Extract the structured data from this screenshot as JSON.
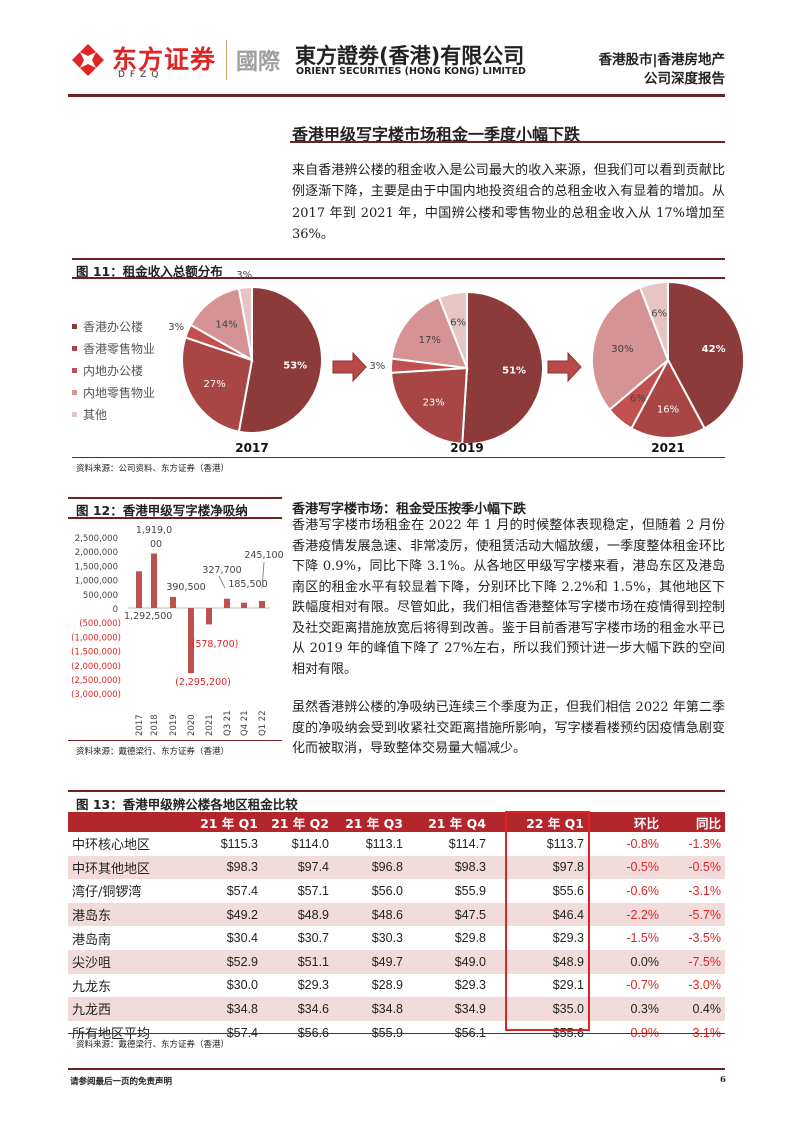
{
  "header": {
    "logo_cn": "东方证券",
    "logo_sub": "DFZQ",
    "intl": "國際",
    "company_cn": "東方證劵(香港)有限公司",
    "company_en": "ORIENT SECURITIES (HONG KONG) LIMITED",
    "category": "香港股市|香港房地产",
    "report_type": "公司深度报告"
  },
  "section": {
    "title": "香港甲级写字楼市场租金一季度小幅下跌",
    "para": "来自香港辨公楼的租金收入是公司最大的收入来源，但我们可以看到贡献比例逐渐下降，主要是由于中国内地投资组合的总租金收入有显着的增加。从 2017 年到 2021 年，中国辨公楼和零售物业的总租金收入从 17%增加至 36%。"
  },
  "colors": {
    "hk_office": "#8c3a3a",
    "hk_retail": "#a84545",
    "cn_office": "#c25050",
    "cn_retail": "#d59393",
    "other": "#e8c5c5",
    "accent": "#6e2222",
    "table_header": "#b3262c",
    "neg": "#e02424"
  },
  "chart_data": [
    {
      "type": "pie",
      "title": "图 11：租金收入总额分布",
      "legend": [
        "香港办公楼",
        "香港零售物业",
        "内地办公楼",
        "内地零售物业",
        "其他"
      ],
      "pies": [
        {
          "year": "2017",
          "values": [
            53,
            27,
            3,
            14,
            3
          ]
        },
        {
          "year": "2019",
          "values": [
            51,
            23,
            3,
            17,
            6
          ]
        },
        {
          "year": "2021",
          "values": [
            42,
            16,
            6,
            30,
            6
          ]
        }
      ],
      "source": "资料来源：公司资料、东方证券（香港）"
    },
    {
      "type": "bar",
      "title": "图 12：香港甲级写字楼净吸纳",
      "categories": [
        "2017",
        "2018",
        "2019",
        "2020",
        "2021",
        "Q3 21",
        "Q4 21",
        "Q1 22"
      ],
      "values": [
        1292500,
        1919000,
        390500,
        -2295200,
        -578700,
        327700,
        185500,
        245100
      ],
      "data_labels": [
        "1,292,500",
        "1,919,000",
        "390,500",
        "(2,295,200)",
        "(578,700)",
        "327,700",
        "185,500",
        "245,100"
      ],
      "yticks": [
        "2,500,000",
        "2,000,000",
        "1,500,000",
        "1,000,000",
        "500,000",
        "0",
        "(500,000)",
        "(1,000,000)",
        "(1,500,000)",
        "(2,000,000)",
        "(2,500,000)",
        "(3,000,000)"
      ],
      "ylim": [
        -3000000,
        2500000
      ],
      "source": "资料来源：戴德梁行、东方证券（香港）"
    }
  ],
  "right": {
    "heading": "香港写字楼市场：租金受压按季小幅下跌",
    "para1": "香港写字楼市场租金在 2022 年 1 月的时候整体表现稳定，但随着 2 月份香港疫情发展急速、非常凌厉，使租赁活动大幅放缓，一季度整体租金环比下降 0.9%，同比下降 3.1%。从各地区甲级写字楼来看，港岛东区及港岛南区的租金水平有较显着下降，分别环比下降 2.2%和 1.5%，其他地区下跌幅度相对有限。尽管如此，我们相信香港整体写字楼市场在疫情得到控制及社交距离措施放宽后将得到改善。鉴于目前香港写字楼市场的租金水平已从 2019 年的峰值下降了 27%左右，所以我们预计进一步大幅下跌的空间相对有限。",
    "para2": "虽然香港辨公楼的净吸纳已连续三个季度为正，但我们相信 2022 年第二季度的净吸纳会受到收紧社交距离措施所影响，写字楼看楼预约因疫情急剧变化而被取消，导致整体交易量大幅减少。"
  },
  "table": {
    "title": "图 13：香港甲级辨公楼各地区租金比较",
    "headers": [
      "",
      "21 年 Q1",
      "21 年 Q2",
      "21 年 Q3",
      "21 年 Q4",
      "22 年 Q1",
      "环比",
      "同比"
    ],
    "rows": [
      [
        "中环核心地区",
        "$115.3",
        "$114.0",
        "$113.1",
        "$114.7",
        "$113.7",
        "-0.8%",
        "-1.3%"
      ],
      [
        "中环其他地区",
        "$98.3",
        "$97.4",
        "$96.8",
        "$98.3",
        "$97.8",
        "-0.5%",
        "-0.5%"
      ],
      [
        "湾仔/铜锣湾",
        "$57.4",
        "$57.1",
        "$56.0",
        "$55.9",
        "$55.6",
        "-0.6%",
        "-3.1%"
      ],
      [
        "港岛东",
        "$49.2",
        "$48.9",
        "$48.6",
        "$47.5",
        "$46.4",
        "-2.2%",
        "-5.7%"
      ],
      [
        "港岛南",
        "$30.4",
        "$30.7",
        "$30.3",
        "$29.8",
        "$29.3",
        "-1.5%",
        "-3.5%"
      ],
      [
        "尖沙咀",
        "$52.9",
        "$51.1",
        "$49.7",
        "$49.0",
        "$48.9",
        "0.0%",
        "-7.5%"
      ],
      [
        "九龙东",
        "$30.0",
        "$29.3",
        "$28.9",
        "$29.3",
        "$29.1",
        "-0.7%",
        "-3.0%"
      ],
      [
        "九龙西",
        "$34.8",
        "$34.6",
        "$34.8",
        "$34.9",
        "$35.0",
        "0.3%",
        "0.4%"
      ],
      [
        "所有地区平均",
        "$57.4",
        "$56.6",
        "$55.9",
        "$56.1",
        "$55.6",
        "-0.9%",
        "-3.1%"
      ]
    ],
    "source": "资料来源：戴德梁行、东方证券（香港）"
  },
  "footer": {
    "disclaimer": "请参阅最后一页的免责声明",
    "page": "6"
  }
}
